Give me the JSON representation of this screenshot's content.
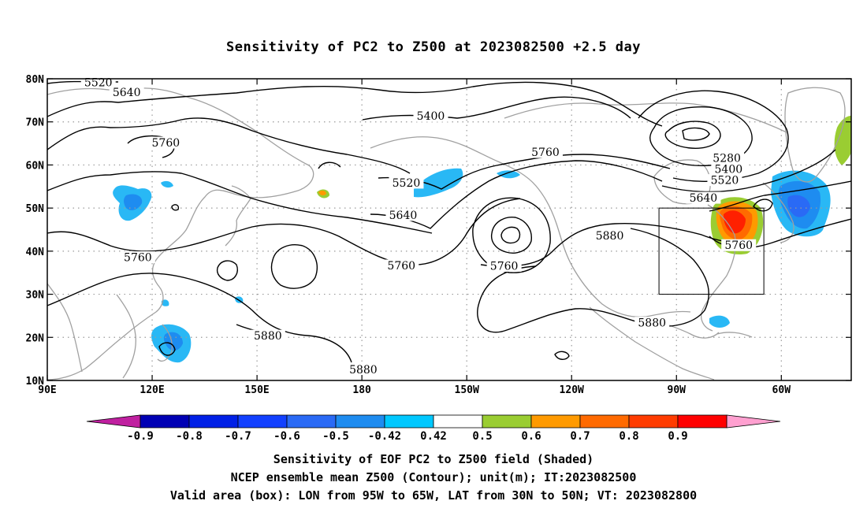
{
  "title": "Sensitivity of PC2 to Z500 at 2023082500 +2.5 day",
  "captions": [
    "Sensitivity of EOF PC2 to Z500 field (Shaded)",
    "NCEP ensemble mean Z500 (Contour); unit(m); IT:2023082500",
    "Valid area (box): LON from 95W to 65W, LAT from 30N to 50N; VT: 2023082800"
  ],
  "map": {
    "lon_range": [
      90,
      320
    ],
    "lat_range": [
      10,
      80
    ],
    "lon_ticks": [
      {
        "lon": 90,
        "label": "90E"
      },
      {
        "lon": 120,
        "label": "120E"
      },
      {
        "lon": 150,
        "label": "150E"
      },
      {
        "lon": 180,
        "label": "180"
      },
      {
        "lon": 210,
        "label": "150W"
      },
      {
        "lon": 240,
        "label": "120W"
      },
      {
        "lon": 270,
        "label": "90W"
      },
      {
        "lon": 300,
        "label": "60W"
      }
    ],
    "lat_ticks": [
      {
        "lat": 10,
        "label": "10N"
      },
      {
        "lat": 20,
        "label": "20N"
      },
      {
        "lat": 30,
        "label": "30N"
      },
      {
        "lat": 40,
        "label": "40N"
      },
      {
        "lat": 50,
        "label": "50N"
      },
      {
        "lat": 60,
        "label": "60N"
      },
      {
        "lat": 70,
        "label": "70N"
      },
      {
        "lat": 80,
        "label": "80N"
      }
    ],
    "grid": true,
    "valid_box": {
      "lon": [
        265,
        295
      ],
      "lat": [
        30,
        50
      ]
    },
    "contour_labels": [
      {
        "text": "5520",
        "lon": 104.6,
        "lat": 79.1
      },
      {
        "text": "5640",
        "lon": 112.7,
        "lat": 76.8
      },
      {
        "text": "5760",
        "lon": 123.9,
        "lat": 65.1
      },
      {
        "text": "5400",
        "lon": 199.7,
        "lat": 71.3
      },
      {
        "text": "5520",
        "lon": 192.7,
        "lat": 55.8
      },
      {
        "text": "5640",
        "lon": 191.8,
        "lat": 48.3
      },
      {
        "text": "5760",
        "lon": 232.5,
        "lat": 62.9
      },
      {
        "text": "5760",
        "lon": 191.3,
        "lat": 36.6
      },
      {
        "text": "5760",
        "lon": 220.7,
        "lat": 36.5
      },
      {
        "text": "5760",
        "lon": 115.9,
        "lat": 38.5
      },
      {
        "text": "5880",
        "lon": 250.9,
        "lat": 43.5
      },
      {
        "text": "5880",
        "lon": 263.0,
        "lat": 23.3
      },
      {
        "text": "5880",
        "lon": 153.1,
        "lat": 20.3
      },
      {
        "text": "5880",
        "lon": 180.4,
        "lat": 12.5
      },
      {
        "text": "5280",
        "lon": 284.4,
        "lat": 61.5
      },
      {
        "text": "5400",
        "lon": 284.9,
        "lat": 59.0
      },
      {
        "text": "5520",
        "lon": 283.8,
        "lat": 56.4
      },
      {
        "text": "5640",
        "lon": 277.7,
        "lat": 52.3
      },
      {
        "text": "5760",
        "lon": 287.8,
        "lat": 41.3
      }
    ]
  },
  "colorbar": {
    "colors": [
      "#0000b4",
      "#0020e6",
      "#1240ff",
      "#2a6af5",
      "#1e8cf0",
      "#00c8ff",
      "#ffffff",
      "#9acd32",
      "#ff9a00",
      "#ff6a00",
      "#ff3c00",
      "#ff0000"
    ],
    "low_end_color": "#c020a0",
    "high_end_color": "#ffa0d0",
    "labels": [
      "-0.9",
      "-0.8",
      "-0.7",
      "-0.6",
      "-0.5",
      "-0.42",
      "0.42",
      "0.5",
      "0.6",
      "0.7",
      "0.8",
      "0.9"
    ]
  },
  "colors": {
    "contour": "#000000",
    "coastline": "#a0a0a0",
    "grid": "#9a9a9a"
  }
}
